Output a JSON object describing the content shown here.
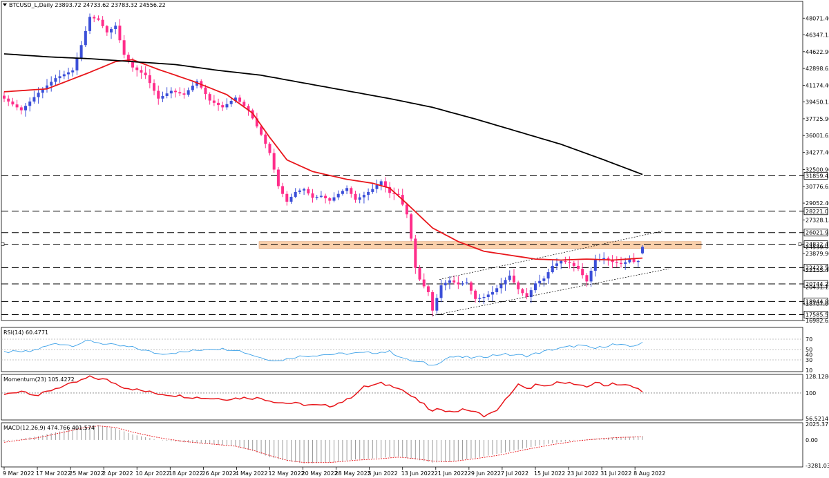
{
  "chart_data": [
    {
      "type": "candlestick",
      "title": "BTCUSD_L,Daily  23893.72 24733.62 23783.32 24556.22",
      "symbol": "BTCUSD_L",
      "timeframe": "Daily",
      "ohlc_header": {
        "open": 23893.72,
        "high": 24733.62,
        "low": 23783.32,
        "close": 24556.22
      },
      "colors": {
        "bull": "#3b4fd8",
        "bear": "#ff2d8a",
        "ma50": "#e8161b",
        "ma200": "#000000",
        "zone": "#f8c08f"
      },
      "ylim": [
        16982.65,
        49795.15
      ],
      "y_ticks": [
        48071.4,
        46347.15,
        44622.9,
        42898.65,
        41174.4,
        39450.15,
        37725.9,
        36001.65,
        34277.4,
        32500.9,
        31859.45,
        30776.65,
        29052.4,
        28221.01,
        27328.15,
        26021.95,
        24832.47,
        24539.94,
        23879.9,
        22423.5,
        22155.4,
        20744.22,
        20431.15,
        18944.99,
        18707.0,
        17585.57,
        16982.65
      ],
      "highlighted_levels": [
        31859.45,
        28221.01,
        26021.95,
        24832.47,
        22423.5,
        20744.22,
        18944.99,
        17585.57
      ],
      "resistance_zone": [
        24400,
        25100
      ],
      "x_labels": [
        "9 Mar 2022",
        "17 Mar 2022",
        "25 Mar 2022",
        "2 Apr 2022",
        "10 Apr 2022",
        "18 Apr 2022",
        "26 Apr 2022",
        "4 May 2022",
        "12 May 2022",
        "20 May 2022",
        "28 May 2022",
        "5 Jun 2022",
        "13 Jun 2022",
        "21 Jun 2022",
        "29 Jun 2022",
        "7 Jul 2022",
        "15 Jul 2022",
        "23 Jul 2022",
        "31 Jul 2022",
        "8 Aug 2022"
      ],
      "close_anchors": [
        [
          0,
          39800
        ],
        [
          4,
          38600
        ],
        [
          8,
          40400
        ],
        [
          12,
          41900
        ],
        [
          16,
          42700
        ],
        [
          18,
          45300
        ],
        [
          20,
          48200
        ],
        [
          22,
          47900
        ],
        [
          24,
          46600
        ],
        [
          26,
          47300
        ],
        [
          28,
          44300
        ],
        [
          30,
          43000
        ],
        [
          33,
          42200
        ],
        [
          36,
          39800
        ],
        [
          39,
          40600
        ],
        [
          42,
          40200
        ],
        [
          45,
          41600
        ],
        [
          48,
          39600
        ],
        [
          51,
          38900
        ],
        [
          54,
          39900
        ],
        [
          57,
          38600
        ],
        [
          60,
          36100
        ],
        [
          62,
          34200
        ],
        [
          64,
          30800
        ],
        [
          66,
          29200
        ],
        [
          68,
          30200
        ],
        [
          70,
          30500
        ],
        [
          72,
          29600
        ],
        [
          74,
          29800
        ],
        [
          76,
          29300
        ],
        [
          78,
          30000
        ],
        [
          80,
          30600
        ],
        [
          82,
          29400
        ],
        [
          84,
          29900
        ],
        [
          86,
          30500
        ],
        [
          88,
          31300
        ],
        [
          90,
          30100
        ],
        [
          92,
          29900
        ],
        [
          94,
          27900
        ],
        [
          95,
          25400
        ],
        [
          96,
          22400
        ],
        [
          97,
          21200
        ],
        [
          98,
          20500
        ],
        [
          99,
          19900
        ],
        [
          100,
          18000
        ],
        [
          102,
          20600
        ],
        [
          104,
          21100
        ],
        [
          106,
          20700
        ],
        [
          108,
          20900
        ],
        [
          110,
          19200
        ],
        [
          112,
          19400
        ],
        [
          114,
          19900
        ],
        [
          116,
          20700
        ],
        [
          118,
          21600
        ],
        [
          120,
          20200
        ],
        [
          122,
          19400
        ],
        [
          124,
          20800
        ],
        [
          126,
          21300
        ],
        [
          128,
          22600
        ],
        [
          130,
          23100
        ],
        [
          132,
          22900
        ],
        [
          134,
          22300
        ],
        [
          136,
          21000
        ],
        [
          138,
          23200
        ],
        [
          140,
          23400
        ],
        [
          142,
          23000
        ],
        [
          144,
          22800
        ],
        [
          146,
          22900
        ],
        [
          148,
          23100
        ],
        [
          149,
          24556
        ]
      ],
      "series": [
        {
          "name": "",
          "anchors": [
            [
              0,
              40500
            ],
            [
              10,
              40800
            ],
            [
              20,
              42500
            ],
            [
              26,
              43600
            ],
            [
              30,
              43800
            ],
            [
              36,
              42800
            ],
            [
              44,
              41600
            ],
            [
              52,
              40200
            ],
            [
              58,
              38300
            ],
            [
              62,
              35800
            ],
            [
              66,
              33500
            ],
            [
              72,
              32300
            ],
            [
              80,
              31500
            ],
            [
              86,
              31100
            ],
            [
              90,
              30600
            ],
            [
              94,
              29000
            ],
            [
              100,
              26500
            ],
            [
              106,
              25100
            ],
            [
              112,
              24100
            ],
            [
              118,
              23700
            ],
            [
              124,
              23300
            ],
            [
              130,
              23200
            ],
            [
              136,
              23300
            ],
            [
              142,
              23200
            ],
            [
              149,
              23400
            ]
          ]
        },
        {
          "name": "",
          "anchors": [
            [
              0,
              44400
            ],
            [
              10,
              44100
            ],
            [
              20,
              43900
            ],
            [
              30,
              43600
            ],
            [
              40,
              43300
            ],
            [
              50,
              42700
            ],
            [
              60,
              42200
            ],
            [
              70,
              41400
            ],
            [
              80,
              40600
            ],
            [
              90,
              39800
            ],
            [
              100,
              38900
            ],
            [
              110,
              37700
            ],
            [
              120,
              36400
            ],
            [
              130,
              35100
            ],
            [
              140,
              33500
            ],
            [
              149,
              32000
            ]
          ]
        }
      ]
    },
    {
      "type": "line",
      "title": "RSI(14) 60.4771",
      "ylim": [
        10,
        90
      ],
      "y_ticks": [
        70,
        50,
        40,
        30,
        10
      ],
      "levels": [
        70,
        50,
        30
      ],
      "color": "#3aa0e8",
      "anchors": [
        [
          0,
          45
        ],
        [
          6,
          46
        ],
        [
          12,
          62
        ],
        [
          16,
          58
        ],
        [
          20,
          67
        ],
        [
          24,
          60
        ],
        [
          30,
          54
        ],
        [
          36,
          42
        ],
        [
          42,
          45
        ],
        [
          48,
          52
        ],
        [
          54,
          50
        ],
        [
          60,
          34
        ],
        [
          64,
          28
        ],
        [
          68,
          36
        ],
        [
          74,
          40
        ],
        [
          80,
          42
        ],
        [
          86,
          44
        ],
        [
          90,
          46
        ],
        [
          94,
          30
        ],
        [
          98,
          24
        ],
        [
          100,
          19
        ],
        [
          104,
          36
        ],
        [
          110,
          34
        ],
        [
          116,
          41
        ],
        [
          122,
          38
        ],
        [
          128,
          50
        ],
        [
          134,
          58
        ],
        [
          138,
          52
        ],
        [
          142,
          60
        ],
        [
          146,
          56
        ],
        [
          149,
          62
        ]
      ]
    },
    {
      "type": "line",
      "title": "Momentum(23) 105.4272",
      "ylim": [
        56.5214,
        128.1286
      ],
      "y_ticks": [
        128.1286,
        100,
        56.5214
      ],
      "levels": [
        100
      ],
      "color": "#e8161b",
      "anchors": [
        [
          0,
          97
        ],
        [
          4,
          104
        ],
        [
          8,
          96
        ],
        [
          12,
          108
        ],
        [
          16,
          116
        ],
        [
          20,
          127
        ],
        [
          24,
          122
        ],
        [
          28,
          110
        ],
        [
          32,
          104
        ],
        [
          36,
          99
        ],
        [
          40,
          96
        ],
        [
          44,
          93
        ],
        [
          48,
          91
        ],
        [
          52,
          90
        ],
        [
          56,
          92
        ],
        [
          60,
          91
        ],
        [
          64,
          84
        ],
        [
          68,
          82
        ],
        [
          72,
          79
        ],
        [
          76,
          78
        ],
        [
          80,
          88
        ],
        [
          84,
          110
        ],
        [
          88,
          116
        ],
        [
          92,
          110
        ],
        [
          96,
          90
        ],
        [
          98,
          80
        ],
        [
          100,
          68
        ],
        [
          102,
          74
        ],
        [
          104,
          68
        ],
        [
          108,
          72
        ],
        [
          112,
          62
        ],
        [
          114,
          66
        ],
        [
          116,
          78
        ],
        [
          118,
          98
        ],
        [
          120,
          114
        ],
        [
          122,
          106
        ],
        [
          124,
          114
        ],
        [
          126,
          110
        ],
        [
          128,
          114
        ],
        [
          130,
          120
        ],
        [
          132,
          117
        ],
        [
          134,
          112
        ],
        [
          136,
          110
        ],
        [
          138,
          119
        ],
        [
          140,
          112
        ],
        [
          142,
          117
        ],
        [
          144,
          114
        ],
        [
          146,
          112
        ],
        [
          149,
          104
        ]
      ]
    },
    {
      "type": "histogram",
      "title": "MACD(12,26,9) 474.766 401.574",
      "ylim": [
        -3281.032,
        2025.371
      ],
      "y_ticks": [
        2025.371,
        0.0,
        -3281.032
      ],
      "hist_color": "#9a9a9a",
      "signal_color": "#e8161b",
      "macd_anchors": [
        [
          0,
          -200
        ],
        [
          8,
          500
        ],
        [
          14,
          1200
        ],
        [
          18,
          1700
        ],
        [
          22,
          1900
        ],
        [
          26,
          1500
        ],
        [
          30,
          700
        ],
        [
          36,
          0
        ],
        [
          42,
          -300
        ],
        [
          48,
          -500
        ],
        [
          54,
          -800
        ],
        [
          58,
          -1400
        ],
        [
          62,
          -2200
        ],
        [
          66,
          -2700
        ],
        [
          70,
          -3000
        ],
        [
          76,
          -2900
        ],
        [
          82,
          -2500
        ],
        [
          88,
          -2300
        ],
        [
          92,
          -2100
        ],
        [
          96,
          -2500
        ],
        [
          100,
          -2900
        ],
        [
          104,
          -2800
        ],
        [
          110,
          -2300
        ],
        [
          116,
          -1700
        ],
        [
          122,
          -1000
        ],
        [
          128,
          -400
        ],
        [
          134,
          0
        ],
        [
          140,
          250
        ],
        [
          144,
          380
        ],
        [
          149,
          475
        ]
      ],
      "signal_anchors": [
        [
          0,
          -300
        ],
        [
          8,
          300
        ],
        [
          14,
          1000
        ],
        [
          18,
          1500
        ],
        [
          22,
          1800
        ],
        [
          26,
          1600
        ],
        [
          30,
          1000
        ],
        [
          36,
          300
        ],
        [
          42,
          -200
        ],
        [
          48,
          -500
        ],
        [
          54,
          -800
        ],
        [
          58,
          -1300
        ],
        [
          62,
          -2000
        ],
        [
          66,
          -2600
        ],
        [
          70,
          -2900
        ],
        [
          76,
          -2900
        ],
        [
          82,
          -2600
        ],
        [
          88,
          -2400
        ],
        [
          92,
          -2200
        ],
        [
          96,
          -2400
        ],
        [
          100,
          -2700
        ],
        [
          104,
          -2800
        ],
        [
          110,
          -2400
        ],
        [
          116,
          -1900
        ],
        [
          122,
          -1200
        ],
        [
          128,
          -600
        ],
        [
          134,
          -100
        ],
        [
          140,
          200
        ],
        [
          144,
          330
        ],
        [
          149,
          400
        ]
      ]
    }
  ]
}
